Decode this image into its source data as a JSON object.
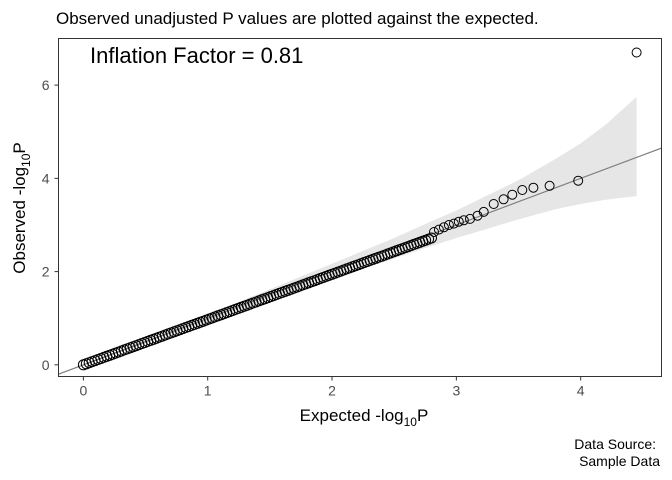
{
  "chart_data": {
    "type": "scatter",
    "title": "Observed unadjusted P values are plotted against the expected.",
    "xlabel": {
      "main": "Expected -log",
      "sub": "10",
      "tail": "P"
    },
    "ylabel": {
      "main": "Observed -log",
      "sub": "10",
      "tail": "P"
    },
    "xlim": [
      -0.2,
      4.65
    ],
    "ylim": [
      -0.25,
      7.0
    ],
    "xticks": [
      0,
      1,
      2,
      3,
      4
    ],
    "yticks": [
      0,
      2,
      4,
      6
    ],
    "grid": false,
    "annotation": "Inflation Factor = 0.81",
    "caption": [
      "Data Source:",
      "Sample Data"
    ],
    "reference_line": {
      "intercept": 0.0,
      "slope": 1.0
    },
    "confidence_band": {
      "x": [
        0.0,
        0.5,
        1.0,
        1.5,
        2.0,
        2.5,
        2.8,
        3.0,
        3.2,
        3.5,
        3.8,
        4.0,
        4.2,
        4.45
      ],
      "lower": [
        0.0,
        0.46,
        0.92,
        1.39,
        1.84,
        2.28,
        2.55,
        2.72,
        2.88,
        3.12,
        3.34,
        3.45,
        3.54,
        3.62
      ],
      "upper": [
        0.0,
        0.54,
        1.08,
        1.62,
        2.17,
        2.72,
        3.08,
        3.31,
        3.57,
        3.96,
        4.42,
        4.75,
        5.15,
        5.75
      ]
    },
    "dense_segment": {
      "x_start": 0.0,
      "x_end": 2.8,
      "y_start": 0.0,
      "y_end": 2.72,
      "count": 120
    },
    "tail_points": {
      "x": [
        2.82,
        2.86,
        2.9,
        2.94,
        2.98,
        3.02,
        3.06,
        3.11,
        3.17,
        3.22,
        3.3,
        3.38,
        3.45,
        3.53,
        3.62,
        3.75,
        3.98,
        4.45
      ],
      "y": [
        2.85,
        2.9,
        2.95,
        3.0,
        3.03,
        3.07,
        3.1,
        3.13,
        3.2,
        3.28,
        3.45,
        3.55,
        3.65,
        3.75,
        3.8,
        3.84,
        3.95,
        6.7
      ]
    }
  }
}
